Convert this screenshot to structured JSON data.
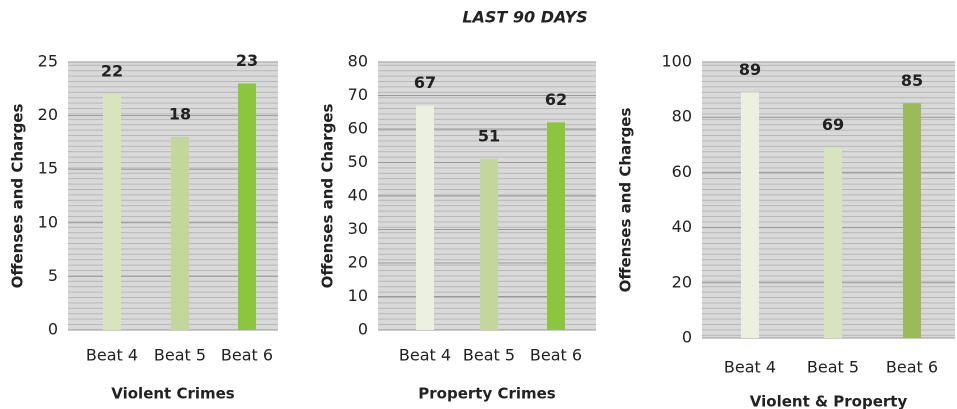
{
  "header": {
    "title": "LAST 90 DAYS"
  },
  "chart_data": [
    {
      "type": "bar",
      "x_label": "Violent Crimes",
      "y_label": "Offenses and Charges",
      "categories": [
        "Beat 4",
        "Beat 5",
        "Beat 6"
      ],
      "values": [
        22,
        18,
        23
      ],
      "colors": [
        "#d7e4bd",
        "#c3d69b",
        "#8cc63f"
      ],
      "ylim": [
        0,
        25
      ],
      "yticks": [
        0,
        5,
        10,
        15,
        20,
        25
      ],
      "grid": true
    },
    {
      "type": "bar",
      "x_label": "Property Crimes",
      "y_label": "Offenses and Charges",
      "categories": [
        "Beat 4",
        "Beat 5",
        "Beat 6"
      ],
      "values": [
        67,
        51,
        62
      ],
      "colors": [
        "#ebf1de",
        "#c3d69b",
        "#8cc63f"
      ],
      "ylim": [
        0,
        80
      ],
      "yticks": [
        0,
        10,
        20,
        30,
        40,
        50,
        60,
        70,
        80
      ],
      "grid": true
    },
    {
      "type": "bar",
      "x_label": "Violent & Property",
      "y_label": "Offenses and Charges",
      "categories": [
        "Beat 4",
        "Beat 5",
        "Beat 6"
      ],
      "values": [
        89,
        69,
        85
      ],
      "colors": [
        "#ebf1de",
        "#d7e4bd",
        "#9bbb59"
      ],
      "ylim": [
        0,
        100
      ],
      "yticks": [
        0,
        20,
        40,
        60,
        80,
        100
      ],
      "grid": true
    }
  ]
}
